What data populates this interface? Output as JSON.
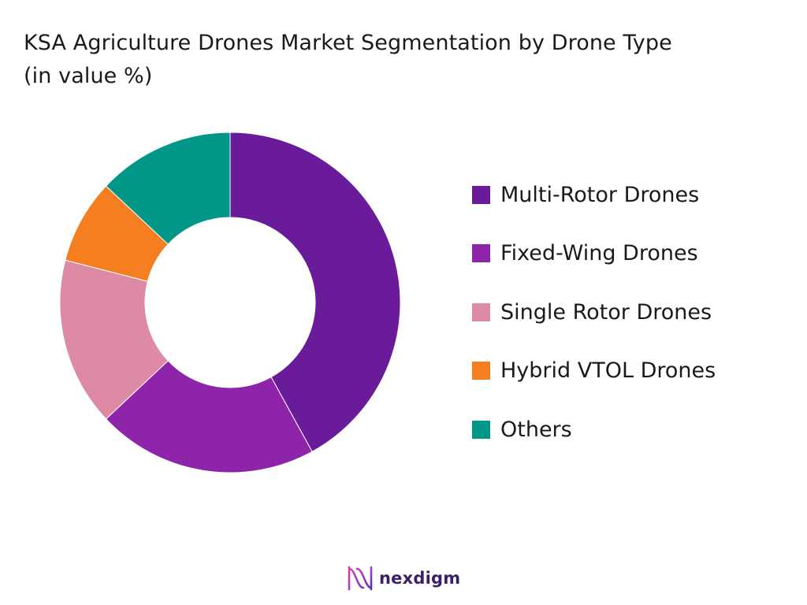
{
  "chart_data": {
    "type": "pie",
    "title": "KSA Agriculture Drones Market Segmentation by Drone Type (in value %)",
    "categories": [
      "Multi-Rotor Drones",
      "Fixed-Wing Drones",
      "Single Rotor Drones",
      "Hybrid VTOL Drones",
      "Others"
    ],
    "values": [
      42,
      21,
      16,
      8,
      13
    ],
    "colors": [
      "#6a1b9a",
      "#8e24aa",
      "#de8aa4",
      "#f57f20",
      "#009688"
    ],
    "donut": true,
    "legend_position": "right"
  },
  "brand": {
    "name": "nexdigm",
    "logo_icon": "nexdigm-wave-icon"
  }
}
